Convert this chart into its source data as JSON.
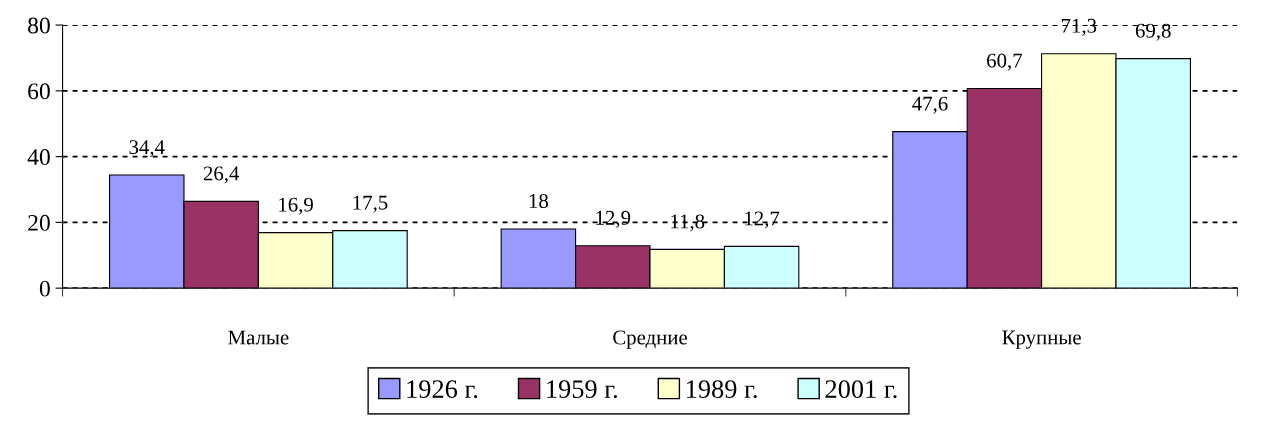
{
  "chart_data": {
    "type": "bar",
    "categories": [
      "Малые",
      "Средние",
      "Крупные"
    ],
    "series": [
      {
        "name": "1926 г.",
        "color": "#9999ff",
        "values": [
          34.4,
          18,
          47.6
        ],
        "value_labels": [
          "34,4",
          "18",
          "47,6"
        ]
      },
      {
        "name": "1959 г.",
        "color": "#993366",
        "values": [
          26.4,
          12.9,
          60.7
        ],
        "value_labels": [
          "26,4",
          "12,9",
          "60,7"
        ]
      },
      {
        "name": "1989 г.",
        "color": "#ffffcc",
        "values": [
          16.9,
          11.8,
          71.3
        ],
        "value_labels": [
          "16,9",
          "11,8",
          "71,3"
        ]
      },
      {
        "name": "2001 г.",
        "color": "#ccffff",
        "values": [
          17.5,
          12.7,
          69.8
        ],
        "value_labels": [
          "17,5",
          "12,7",
          "69,8"
        ]
      }
    ],
    "ylim": [
      0,
      80
    ],
    "yticks": [
      0,
      20,
      40,
      60,
      80
    ],
    "grid": "y",
    "legend": "bottom"
  }
}
